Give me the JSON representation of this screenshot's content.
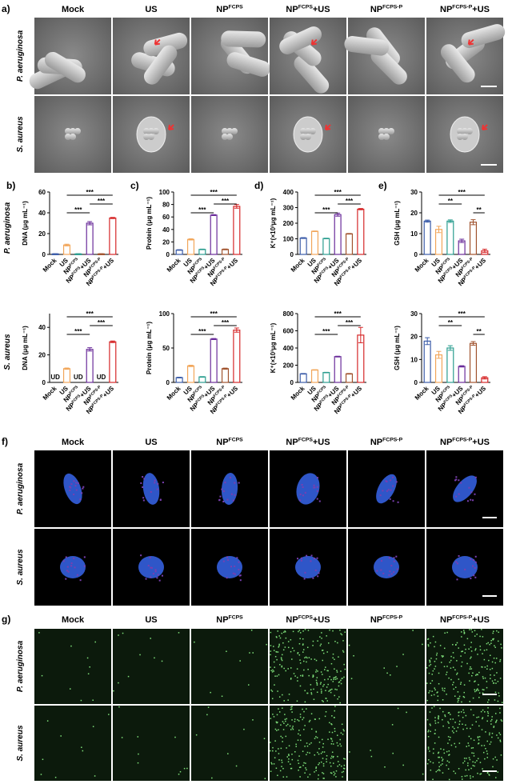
{
  "panel_a": {
    "label": "a)",
    "columns": [
      [
        "Mock"
      ],
      [
        "US"
      ],
      [
        "NP",
        "FCPS"
      ],
      [
        "NP",
        "FCPS",
        "+US"
      ],
      [
        "NP",
        "FCPS-P"
      ],
      [
        "NP",
        "FCPS-P",
        "+US"
      ]
    ],
    "rows": [
      "P. aeruginosa",
      "S. aureus"
    ]
  },
  "chart_panels": [
    "b)",
    "c)",
    "d)",
    "e)"
  ],
  "chart_rows": [
    "P. aeruginosa",
    "S. aureus"
  ],
  "chart_data": [
    {
      "type": "bar",
      "y_label": "DNA (μg mL⁻¹)",
      "categories": [
        [
          "Mock"
        ],
        [
          "US"
        ],
        [
          "NP",
          "FCPS"
        ],
        [
          "NP",
          "FCPS",
          "+US"
        ],
        [
          "NP",
          "FCPS-P"
        ],
        [
          "NP",
          "FCPS-P",
          "+US"
        ]
      ],
      "values": [
        0.5,
        9,
        0.5,
        30,
        0.5,
        35
      ],
      "errors": [
        0.2,
        0.8,
        0.2,
        1.5,
        0.2,
        0.6
      ],
      "colors": [
        "#3a5ba8",
        "#f2a65a",
        "#2a9d8f",
        "#6a2c9a",
        "#a0522d",
        "#d62728"
      ],
      "ylim": [
        0,
        60
      ],
      "yticks": [
        0,
        20,
        40,
        60
      ],
      "annotations": [
        {
          "text": "***",
          "from": 1,
          "to": 5
        },
        {
          "text": "***",
          "from": 3,
          "to": 5
        },
        {
          "text": "***",
          "from": 1,
          "to": 3
        }
      ]
    },
    {
      "type": "bar",
      "y_label": "Protein (μg mL⁻¹)",
      "categories": [
        [
          "Mock"
        ],
        [
          "US"
        ],
        [
          "NP",
          "FCPS"
        ],
        [
          "NP",
          "FCPS",
          "+US"
        ],
        [
          "NP",
          "FCPS-P"
        ],
        [
          "NP",
          "FCPS-P",
          "+US"
        ]
      ],
      "values": [
        7,
        24,
        8,
        63,
        8,
        77
      ],
      "errors": [
        0.5,
        1,
        0.5,
        0.8,
        0.6,
        3
      ],
      "colors": [
        "#3a5ba8",
        "#f2a65a",
        "#2a9d8f",
        "#6a2c9a",
        "#a0522d",
        "#d62728"
      ],
      "ylim": [
        0,
        100
      ],
      "yticks": [
        0,
        20,
        40,
        60,
        80,
        100
      ],
      "annotations": [
        {
          "text": "***",
          "from": 1,
          "to": 5
        },
        {
          "text": "***",
          "from": 3,
          "to": 5
        },
        {
          "text": "***",
          "from": 1,
          "to": 3
        }
      ]
    },
    {
      "type": "bar",
      "y_label": "K⁺(×10³μg mL⁻¹)",
      "categories": [
        [
          "Mock"
        ],
        [
          "US"
        ],
        [
          "NP",
          "FCPS"
        ],
        [
          "NP",
          "FCPS",
          "+US"
        ],
        [
          "NP",
          "FCPS-P"
        ],
        [
          "NP",
          "FCPS-P",
          "+US"
        ]
      ],
      "values": [
        105,
        148,
        102,
        255,
        132,
        290
      ],
      "errors": [
        3,
        2,
        2,
        10,
        2,
        4
      ],
      "colors": [
        "#3a5ba8",
        "#f2a65a",
        "#2a9d8f",
        "#6a2c9a",
        "#a0522d",
        "#d62728"
      ],
      "ylim": [
        0,
        400
      ],
      "yticks": [
        0,
        100,
        200,
        300,
        400
      ],
      "annotations": [
        {
          "text": "***",
          "from": 1,
          "to": 5
        },
        {
          "text": "***",
          "from": 3,
          "to": 5
        },
        {
          "text": "***",
          "from": 1,
          "to": 3
        }
      ]
    },
    {
      "type": "bar",
      "y_label": "GSH (μg mL⁻¹)",
      "categories": [
        [
          "Mock"
        ],
        [
          "US"
        ],
        [
          "NP",
          "FCPS"
        ],
        [
          "NP",
          "FCPS",
          "+US"
        ],
        [
          "NP",
          "FCPS-P"
        ],
        [
          "NP",
          "FCPS-P",
          "+US"
        ]
      ],
      "values": [
        16,
        12,
        16,
        6.5,
        15.5,
        1.7
      ],
      "errors": [
        0.5,
        1.5,
        0.6,
        0.8,
        1.2,
        0.8
      ],
      "colors": [
        "#3a5ba8",
        "#f2a65a",
        "#2a9d8f",
        "#6a2c9a",
        "#a0522d",
        "#d62728"
      ],
      "ylim": [
        0,
        30
      ],
      "yticks": [
        0,
        10,
        20,
        30
      ],
      "annotations": [
        {
          "text": "***",
          "from": 1,
          "to": 5
        },
        {
          "text": "**",
          "from": 1,
          "to": 3
        },
        {
          "text": "**",
          "from": 4,
          "to": 5
        }
      ]
    },
    {
      "type": "bar",
      "y_label": "DNA (μg mL⁻¹)",
      "categories": [
        [
          "Mock"
        ],
        [
          "US"
        ],
        [
          "NP",
          "FCPS"
        ],
        [
          "NP",
          "FCPS",
          "+US"
        ],
        [
          "NP",
          "FCPS-P"
        ],
        [
          "NP",
          "FCPS-P",
          "+US"
        ]
      ],
      "values": [
        null,
        10,
        null,
        24,
        null,
        29.5
      ],
      "errors": [
        null,
        0.5,
        null,
        1.2,
        null,
        0.6
      ],
      "value_labels": [
        "UD",
        null,
        "UD",
        null,
        "UD",
        null
      ],
      "colors": [
        "#3a5ba8",
        "#f2a65a",
        "#2a9d8f",
        "#6a2c9a",
        "#a0522d",
        "#d62728"
      ],
      "ylim": [
        0,
        50
      ],
      "yticks": [
        0,
        20,
        40
      ],
      "annotations": [
        {
          "text": "***",
          "from": 1,
          "to": 5
        },
        {
          "text": "***",
          "from": 3,
          "to": 5
        },
        {
          "text": "***",
          "from": 1,
          "to": 3
        }
      ]
    },
    {
      "type": "bar",
      "y_label": "Protein (μg mL⁻¹)",
      "categories": [
        [
          "Mock"
        ],
        [
          "US"
        ],
        [
          "NP",
          "FCPS"
        ],
        [
          "NP",
          "FCPS",
          "+US"
        ],
        [
          "NP",
          "FCPS-P"
        ],
        [
          "NP",
          "FCPS-P",
          "+US"
        ]
      ],
      "values": [
        7,
        24,
        8,
        63,
        20,
        76
      ],
      "errors": [
        0.5,
        1,
        0.5,
        0.8,
        0.8,
        3
      ],
      "colors": [
        "#3a5ba8",
        "#f2a65a",
        "#2a9d8f",
        "#6a2c9a",
        "#a0522d",
        "#d62728"
      ],
      "ylim": [
        0,
        100
      ],
      "yticks": [
        0,
        50,
        100
      ],
      "annotations": [
        {
          "text": "***",
          "from": 1,
          "to": 5
        },
        {
          "text": "***",
          "from": 3,
          "to": 5
        },
        {
          "text": "***",
          "from": 1,
          "to": 3
        }
      ]
    },
    {
      "type": "bar",
      "y_label": "K⁺(×10³μg mL⁻¹)",
      "categories": [
        [
          "Mock"
        ],
        [
          "US"
        ],
        [
          "NP",
          "FCPS"
        ],
        [
          "NP",
          "FCPS",
          "+US"
        ],
        [
          "NP",
          "FCPS-P"
        ],
        [
          "NP",
          "FCPS-P",
          "+US"
        ]
      ],
      "values": [
        100,
        145,
        115,
        300,
        100,
        550
      ],
      "errors": [
        3,
        3,
        3,
        5,
        3,
        90
      ],
      "colors": [
        "#3a5ba8",
        "#f2a65a",
        "#2a9d8f",
        "#6a2c9a",
        "#a0522d",
        "#d62728"
      ],
      "ylim": [
        0,
        800
      ],
      "yticks": [
        0,
        200,
        400,
        600,
        800
      ],
      "annotations": [
        {
          "text": "***",
          "from": 1,
          "to": 5
        },
        {
          "text": "***",
          "from": 3,
          "to": 5
        },
        {
          "text": "***",
          "from": 1,
          "to": 3
        }
      ]
    },
    {
      "type": "bar",
      "y_label": "GSH (μg mL⁻¹)",
      "categories": [
        [
          "Mock"
        ],
        [
          "US"
        ],
        [
          "NP",
          "FCPS"
        ],
        [
          "NP",
          "FCPS",
          "+US"
        ],
        [
          "NP",
          "FCPS-P"
        ],
        [
          "NP",
          "FCPS-P",
          "+US"
        ]
      ],
      "values": [
        18,
        12,
        15,
        7,
        17,
        2
      ],
      "errors": [
        1.5,
        1.5,
        1,
        0.3,
        0.8,
        0.5
      ],
      "colors": [
        "#3a5ba8",
        "#f2a65a",
        "#2a9d8f",
        "#6a2c9a",
        "#a0522d",
        "#d62728"
      ],
      "ylim": [
        0,
        30
      ],
      "yticks": [
        0,
        10,
        20,
        30
      ],
      "annotations": [
        {
          "text": "***",
          "from": 1,
          "to": 5
        },
        {
          "text": "**",
          "from": 1,
          "to": 3
        },
        {
          "text": "**",
          "from": 4,
          "to": 5
        }
      ]
    }
  ],
  "panel_f": {
    "label": "f)",
    "columns": [
      [
        "Mock"
      ],
      [
        "US"
      ],
      [
        "NP",
        "FCPS"
      ],
      [
        "NP",
        "FCPS",
        "+US"
      ],
      [
        "NP",
        "FCPS-P"
      ],
      [
        "NP",
        "FCPS-P",
        "+US"
      ]
    ],
    "rows": [
      "P. aeruginosa",
      "S. aureus"
    ]
  },
  "panel_g": {
    "label": "g)",
    "columns": [
      [
        "Mock"
      ],
      [
        "US"
      ],
      [
        "NP",
        "FCPS"
      ],
      [
        "NP",
        "FCPS",
        "+US"
      ],
      [
        "NP",
        "FCPS-P"
      ],
      [
        "NP",
        "FCPS-P",
        "+US"
      ]
    ],
    "rows": [
      "P. aeruginosa",
      "S. aureus"
    ]
  }
}
